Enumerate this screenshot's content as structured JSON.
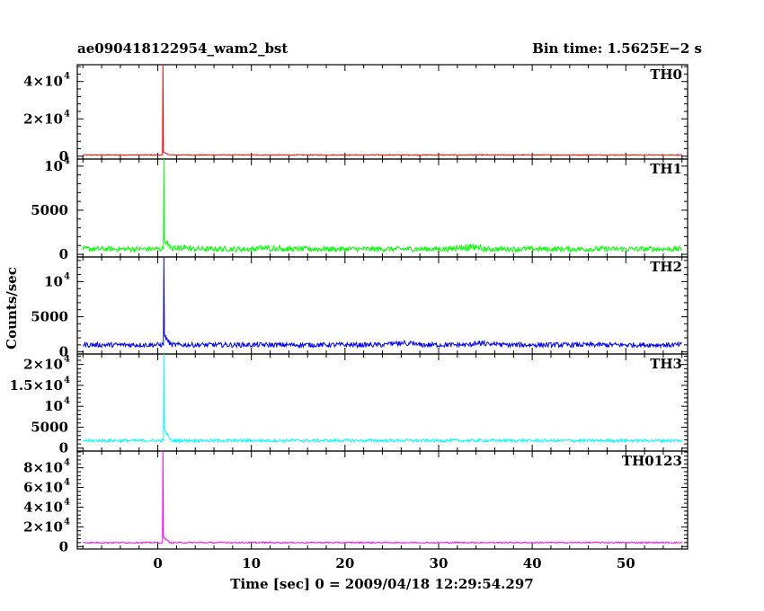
{
  "header": {
    "title": "ae090418122954_wam2_bst",
    "bin_time": "Bin time: 1.5625E−2 s"
  },
  "axes": {
    "ylabel": "Counts/sec",
    "xlabel": "Time [sec] 0 = 2009/04/18 12:29:54.297",
    "x_ticks": [
      "0",
      "10",
      "20",
      "30",
      "40",
      "50"
    ]
  },
  "colors": {
    "TH0": "#ff0000",
    "TH1": "#00ff00",
    "TH2": "#0000ff",
    "TH3": "#00ffff",
    "TH0123": "#ff00ff",
    "frame": "#000000"
  },
  "chart_data": [
    {
      "type": "line",
      "name": "TH0",
      "label": "TH0",
      "xlim": [
        -8.6,
        56.6
      ],
      "ylim": [
        -1500,
        49000
      ],
      "yticks": [
        {
          "v": 0,
          "m": "0",
          "e": ""
        },
        {
          "v": 20000,
          "m": "2×10",
          "e": "4"
        },
        {
          "v": 40000,
          "m": "4×10",
          "e": "4"
        }
      ],
      "x_range": [
        -8,
        56
      ],
      "baseline": 700,
      "noise": 250,
      "spike": {
        "x": 0.5,
        "peak": 49000,
        "after": 1500
      },
      "bumps": []
    },
    {
      "type": "line",
      "name": "TH1",
      "label": "TH1",
      "xlim": [
        -8.6,
        56.6
      ],
      "ylim": [
        -300,
        10800
      ],
      "yticks": [
        {
          "v": 0,
          "m": "0",
          "e": ""
        },
        {
          "v": 5000,
          "m": "5000",
          "e": ""
        },
        {
          "v": 10000,
          "m": "10",
          "e": "4"
        }
      ],
      "x_range": [
        -8,
        56
      ],
      "baseline": 600,
      "noise": 300,
      "spike": {
        "x": 0.6,
        "peak": 10800,
        "after": 1000
      },
      "bumps": [
        {
          "x": 2,
          "h": 250
        },
        {
          "x": 12,
          "h": 200
        },
        {
          "x": 33,
          "h": 350
        }
      ]
    },
    {
      "type": "line",
      "name": "TH2",
      "label": "TH2",
      "xlim": [
        -8.6,
        56.6
      ],
      "ylim": [
        -300,
        13500
      ],
      "yticks": [
        {
          "v": 0,
          "m": "0",
          "e": ""
        },
        {
          "v": 5000,
          "m": "5000",
          "e": ""
        },
        {
          "v": 10000,
          "m": "10",
          "e": "4"
        }
      ],
      "x_range": [
        -8,
        56
      ],
      "baseline": 1000,
      "noise": 350,
      "spike": {
        "x": 0.6,
        "peak": 13500,
        "after": 1500
      },
      "bumps": [
        {
          "x": 26,
          "h": 300
        },
        {
          "x": 35,
          "h": 250
        }
      ]
    },
    {
      "type": "line",
      "name": "TH3",
      "label": "TH3",
      "xlim": [
        -8.6,
        56.6
      ],
      "ylim": [
        -700,
        22500
      ],
      "yticks": [
        {
          "v": 0,
          "m": "0",
          "e": ""
        },
        {
          "v": 5000,
          "m": "5000",
          "e": ""
        },
        {
          "v": 10000,
          "m": "10",
          "e": "4"
        },
        {
          "v": 15000,
          "m": "1.5×10",
          "e": "4"
        },
        {
          "v": 20000,
          "m": "2×10",
          "e": "4"
        }
      ],
      "x_range": [
        -8,
        56
      ],
      "baseline": 1800,
      "noise": 350,
      "spike": {
        "x": 0.6,
        "peak": 22500,
        "after": 3000
      },
      "bumps": []
    },
    {
      "type": "line",
      "name": "TH0123",
      "label": "TH0123",
      "xlim": [
        -8.6,
        56.6
      ],
      "ylim": [
        -2500,
        97000
      ],
      "yticks": [
        {
          "v": 0,
          "m": "0",
          "e": ""
        },
        {
          "v": 20000,
          "m": "2×10",
          "e": "4"
        },
        {
          "v": 40000,
          "m": "4×10",
          "e": "4"
        },
        {
          "v": 60000,
          "m": "6×10",
          "e": "4"
        },
        {
          "v": 80000,
          "m": "8×10",
          "e": "4"
        }
      ],
      "x_range": [
        -8,
        56
      ],
      "baseline": 4000,
      "noise": 600,
      "spike": {
        "x": 0.5,
        "peak": 97000,
        "after": 6000
      },
      "bumps": []
    }
  ]
}
